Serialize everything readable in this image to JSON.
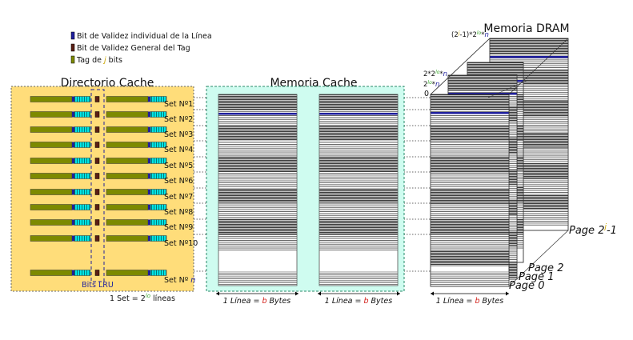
{
  "legend": {
    "item1": "Bit de Validez individual de la Línea",
    "item2": "Bit de Validez General del Tag",
    "item3_prefix": "Tag de ",
    "item3_var": "j",
    "item3_suffix": " bits",
    "colors": {
      "valid_line": "#1f1f9e",
      "valid_tag": "#5a1f14",
      "tag": "#7d8a00"
    }
  },
  "titles": {
    "directory": "Directorio Cache",
    "cache": "Memoria Cache",
    "dram": "Memoria DRAM"
  },
  "sets": [
    "Set Nº1",
    "Set Nº2",
    "Set Nº3",
    "Set Nº4",
    "Set Nº5",
    "Set Nº6",
    "Set Nº7",
    "Set Nº8",
    "Set Nº9",
    "Set Nº10"
  ],
  "set_n": {
    "prefix": "Set Nº ",
    "var": "n"
  },
  "bits_lru": "Bits LRU",
  "one_set": {
    "prefix": "1 Set = 2",
    "sup": "lo",
    "suffix": " líneas"
  },
  "line_bytes": {
    "prefix": "1 Línea = ",
    "var": "b",
    "suffix": " Bytes"
  },
  "dram_addr": {
    "top_a": "(2",
    "top_j": "j",
    "top_b": "-1)*2",
    "top_lo": "lo",
    "top_c": "*",
    "top_n": "n",
    "mid_a": "2*2",
    "mid_lo": "lo",
    "mid_c": "*",
    "mid_n": "n",
    "low_a": "2",
    "low_lo": "lo",
    "low_c": "*",
    "low_n": "n",
    "zero": "0"
  },
  "pages": {
    "last_prefix": "Page 2",
    "last_sup": "j",
    "last_suffix": "-1",
    "p2": "Page 2",
    "p1": "Page 1",
    "p0": "Page 0"
  },
  "colors": {
    "directory_bg": "#ffdd7a",
    "cache_bg": "#cffcf0",
    "accent_blue": "#1f1f9e",
    "accent_red": "#d4201a",
    "accent_green": "#3aa82d"
  }
}
